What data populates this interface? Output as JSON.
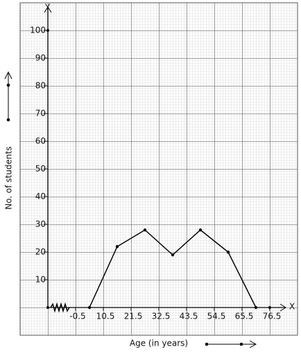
{
  "chart_data": {
    "type": "line",
    "x_label": "Age (in years)",
    "y_label": "No. of students",
    "x_axis_name": "X",
    "y_axis_name": "Y",
    "x": [
      5,
      16,
      27,
      38,
      49,
      60,
      71
    ],
    "values": [
      0,
      22,
      28,
      19,
      28,
      20,
      0
    ],
    "color": "#000000",
    "xlim": [
      -0.5,
      76.5
    ],
    "xticks": [
      -0.5,
      10.5,
      21.5,
      32.5,
      43.5,
      54.5,
      65.5,
      76.5
    ],
    "ylim": [
      0,
      100
    ],
    "yticks": [
      10,
      20,
      30,
      40,
      50,
      60,
      70,
      80,
      90,
      100
    ]
  }
}
